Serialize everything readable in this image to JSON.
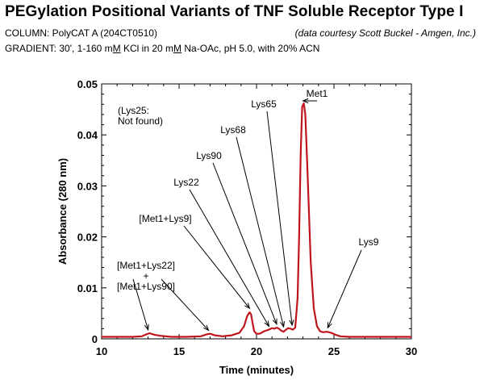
{
  "header": {
    "title": "PEGylation Positional Variants of TNF Soluble Receptor Type I",
    "column_line": "COLUMN: PolyCAT A (204CT0510)",
    "credit": "(data courtesy Scott Buckel - Amgen, Inc.)",
    "gradient_prefix": "GRADIENT: 30', 1-160 m",
    "gradient_m1": "M",
    "gradient_mid": " KCl in 20 m",
    "gradient_m2": "M",
    "gradient_suffix": " Na-OAc, pH 5.0, with 20% ACN"
  },
  "colors": {
    "trace": "#c0141c",
    "axis": "#000000"
  },
  "chart_data": {
    "type": "line",
    "title": "",
    "xlabel": "Time (minutes)",
    "ylabel": "Absorbance (280 nm)",
    "xlim": [
      10,
      30
    ],
    "ylim": [
      0,
      0.05
    ],
    "xticks": [
      10,
      15,
      20,
      25,
      30
    ],
    "xtick_labels": [
      "10",
      "15",
      "20",
      "25",
      "30"
    ],
    "yticks": [
      0,
      0.01,
      0.02,
      0.03,
      0.04,
      0.05
    ],
    "ytick_labels": [
      "0",
      "0.01",
      "0.02",
      "0.03",
      "0.04",
      "0.05"
    ],
    "grid": false,
    "series": [
      {
        "x": [
          10.0,
          11.0,
          12.0,
          12.6,
          12.9,
          13.1,
          13.4,
          13.8,
          14.5,
          15.5,
          16.4,
          16.8,
          17.0,
          17.3,
          17.8,
          18.4,
          18.9,
          19.2,
          19.4,
          19.55,
          19.65,
          19.75,
          19.85,
          20.0,
          20.2,
          20.5,
          20.8,
          21.0,
          21.15,
          21.3,
          21.45,
          21.6,
          21.75,
          21.9,
          22.05,
          22.2,
          22.35,
          22.5,
          22.65,
          22.75,
          22.85,
          22.95,
          23.05,
          23.15,
          23.3,
          23.5,
          23.7,
          23.9,
          24.1,
          24.3,
          24.55,
          24.8,
          25.1,
          25.4,
          26.0,
          27.0,
          28.0,
          29.0,
          30.0
        ],
        "y": [
          0.0004,
          0.0004,
          0.0004,
          0.0005,
          0.0009,
          0.0011,
          0.0008,
          0.0006,
          0.0004,
          0.0004,
          0.0005,
          0.0009,
          0.001,
          0.0007,
          0.0005,
          0.0007,
          0.0012,
          0.0025,
          0.0045,
          0.0052,
          0.0048,
          0.003,
          0.0015,
          0.001,
          0.001,
          0.0015,
          0.0018,
          0.0021,
          0.002,
          0.0022,
          0.002,
          0.0016,
          0.0014,
          0.0018,
          0.0021,
          0.002,
          0.0018,
          0.0022,
          0.008,
          0.02,
          0.036,
          0.0455,
          0.0462,
          0.044,
          0.032,
          0.015,
          0.006,
          0.0025,
          0.0015,
          0.0013,
          0.0014,
          0.0012,
          0.0008,
          0.0005,
          0.0004,
          0.0004,
          0.0004,
          0.0004,
          0.0004
        ]
      }
    ],
    "annotations": [
      {
        "lines": [
          "(Lys25:",
          "Not found)"
        ],
        "arrow": false
      },
      {
        "lines": [
          "Met1"
        ],
        "x": 23.0,
        "y": 0.0462,
        "arrow": true
      },
      {
        "lines": [
          "Lys65"
        ],
        "x": 22.3,
        "y": 0.0022,
        "arrow": true
      },
      {
        "lines": [
          "Lys68"
        ],
        "x": 21.75,
        "y": 0.0019,
        "arrow": true
      },
      {
        "lines": [
          "Lys90"
        ],
        "x": 21.3,
        "y": 0.0024,
        "arrow": true
      },
      {
        "lines": [
          "Lys22"
        ],
        "x": 20.8,
        "y": 0.002,
        "arrow": true
      },
      {
        "lines": [
          "[Met1+Lys9]"
        ],
        "x": 19.55,
        "y": 0.0055,
        "arrow": true
      },
      {
        "lines": [
          "Lys9"
        ],
        "x": 24.6,
        "y": 0.0017,
        "arrow": true
      },
      {
        "lines": [
          "[Met1+Lys22]",
          "+",
          "[Met1+Lys90]"
        ],
        "x": [
          13.0,
          16.9
        ],
        "y": [
          0.0013,
          0.0012
        ],
        "arrow": true
      }
    ]
  }
}
